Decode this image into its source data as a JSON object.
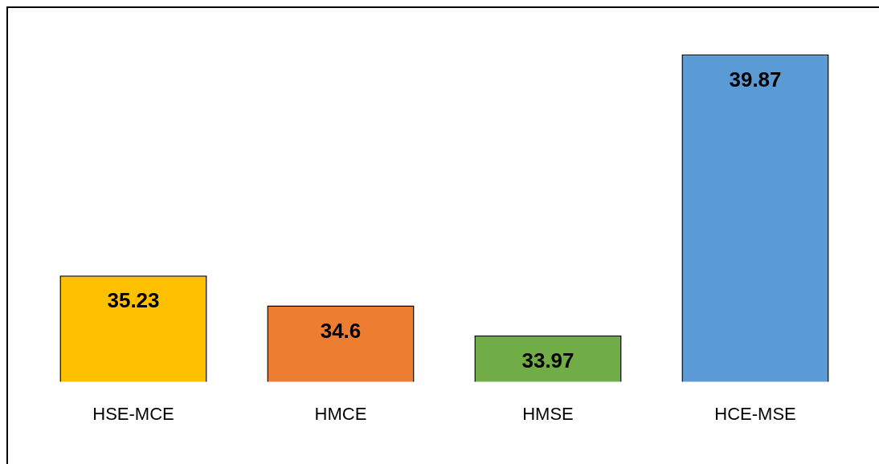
{
  "chart_data": {
    "type": "bar",
    "categories": [
      "HSE-MCE",
      "HMCE",
      "HMSE",
      "HCE-MSE"
    ],
    "values": [
      35.23,
      34.6,
      33.97,
      39.87
    ],
    "colors": [
      "#ffc000",
      "#ed7d31",
      "#70ad47",
      "#5b9bd5"
    ],
    "tick_labels": "x",
    "grid": false,
    "legend": false,
    "data_labels": true
  }
}
